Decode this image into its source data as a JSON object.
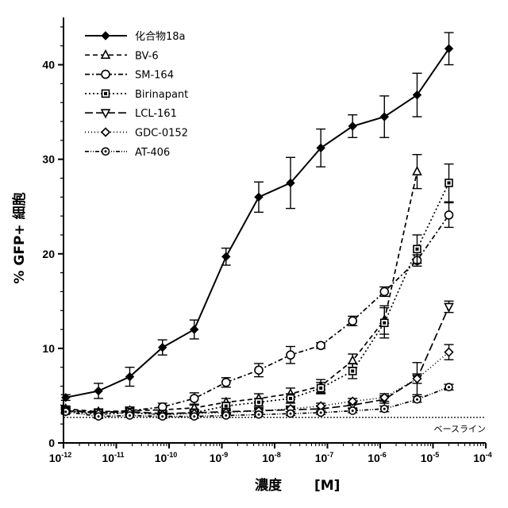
{
  "chart_data": {
    "type": "line",
    "xscale": "log",
    "xlim": [
      1e-12,
      0.0001
    ],
    "ylim": [
      0,
      45
    ],
    "xlabel": "濃度",
    "xlabel_unit": "[M]",
    "ylabel": "% GFP+ 細胞",
    "xticks": [
      "10-12",
      "10-11",
      "10-10",
      "10-9",
      "10-8",
      "10-7",
      "10-6",
      "10-5",
      "10-4"
    ],
    "yticks": [
      "0",
      "10",
      "20",
      "30",
      "40"
    ],
    "legend_position": "top-left",
    "baseline": {
      "value": 2.7,
      "label": "ベースライン"
    },
    "series": [
      {
        "name": "化合物18a",
        "marker": "diamond-filled",
        "dash": "solid",
        "x": [
          1.1e-12,
          4.6e-12,
          1.8e-11,
          7.5e-11,
          3e-10,
          1.2e-09,
          5e-09,
          2e-08,
          7.5e-08,
          3e-07,
          1.2e-06,
          5e-06,
          2e-05
        ],
        "y": [
          4.8,
          5.5,
          7.0,
          10.1,
          12.0,
          19.7,
          26.0,
          27.5,
          31.2,
          33.5,
          34.5,
          36.8,
          41.7
        ],
        "err": [
          0.3,
          0.8,
          1.0,
          0.8,
          1.0,
          0.9,
          1.6,
          2.7,
          2.0,
          1.2,
          2.2,
          2.3,
          1.7
        ]
      },
      {
        "name": "BV-6",
        "marker": "triangle-up",
        "dash": "6,4",
        "x": [
          1.1e-12,
          4.6e-12,
          1.8e-11,
          7.5e-11,
          3e-10,
          1.2e-09,
          5e-09,
          2e-08,
          7.5e-08,
          3e-07,
          1.2e-06,
          5e-06
        ],
        "y": [
          3.6,
          3.3,
          3.4,
          3.5,
          3.7,
          4.3,
          4.7,
          5.2,
          6.0,
          8.7,
          13.0,
          28.7
        ],
        "err": [
          0.3,
          0.3,
          0.3,
          0.3,
          0.3,
          0.4,
          0.5,
          0.6,
          0.7,
          0.7,
          1.5,
          1.8
        ]
      },
      {
        "name": "SM-164",
        "marker": "circle-open",
        "dash": "6,3,2,3",
        "x": [
          1.1e-12,
          4.6e-12,
          1.8e-11,
          7.5e-11,
          3e-10,
          1.2e-09,
          5e-09,
          2e-08,
          7.5e-08,
          3e-07,
          1.2e-06,
          5e-06,
          2e-05
        ],
        "y": [
          3.5,
          3.2,
          3.4,
          3.8,
          4.7,
          6.4,
          7.7,
          9.3,
          10.3,
          12.9,
          16.0,
          19.3,
          24.1
        ],
        "err": [
          0.3,
          0.3,
          0.4,
          0.4,
          0.6,
          0.5,
          0.7,
          0.9,
          0.3,
          0.5,
          0.5,
          0.6,
          1.3
        ]
      },
      {
        "name": "Birinapant",
        "marker": "square-dot",
        "dash": "2,3",
        "x": [
          1.1e-12,
          4.6e-12,
          1.8e-11,
          7.5e-11,
          3e-10,
          1.2e-09,
          5e-09,
          2e-08,
          7.5e-08,
          3e-07,
          1.2e-06,
          5e-06,
          2e-05
        ],
        "y": [
          3.4,
          3.0,
          3.2,
          3.0,
          3.2,
          3.9,
          4.3,
          4.7,
          5.8,
          7.6,
          12.7,
          20.5,
          27.5
        ],
        "err": [
          0.3,
          0.3,
          0.3,
          0.3,
          0.3,
          0.4,
          0.4,
          0.5,
          0.6,
          0.8,
          1.6,
          1.5,
          2.0
        ]
      },
      {
        "name": "LCL-161",
        "marker": "triangle-down",
        "dash": "10,4",
        "x": [
          1.1e-12,
          4.6e-12,
          1.8e-11,
          7.5e-11,
          3e-10,
          1.2e-09,
          5e-09,
          2e-08,
          7.5e-08,
          3e-07,
          1.2e-06,
          5e-06,
          2e-05
        ],
        "y": [
          3.4,
          3.2,
          3.3,
          3.1,
          3.2,
          3.3,
          3.4,
          3.5,
          3.6,
          4.0,
          4.6,
          6.8,
          14.4
        ],
        "err": [
          0.2,
          0.2,
          0.2,
          0.2,
          0.2,
          0.2,
          0.2,
          0.2,
          0.3,
          0.3,
          0.4,
          1.7,
          0.6
        ]
      },
      {
        "name": "GDC-0152",
        "marker": "diamond-open",
        "dash": "1,3",
        "x": [
          1.1e-12,
          4.6e-12,
          1.8e-11,
          7.5e-11,
          3e-10,
          1.2e-09,
          5e-09,
          2e-08,
          7.5e-08,
          3e-07,
          1.2e-06,
          5e-06,
          2e-05
        ],
        "y": [
          3.4,
          3.1,
          3.2,
          3.0,
          3.1,
          3.2,
          3.4,
          3.6,
          3.9,
          4.4,
          4.8,
          6.8,
          9.6
        ],
        "err": [
          0.2,
          0.2,
          0.2,
          0.2,
          0.2,
          0.2,
          0.2,
          0.3,
          0.3,
          0.3,
          0.4,
          0.5,
          0.8
        ]
      },
      {
        "name": "AT-406",
        "marker": "circle-dot",
        "dash": "5,2,1,2,1,2",
        "x": [
          1.1e-12,
          4.6e-12,
          1.8e-11,
          7.5e-11,
          3e-10,
          1.2e-09,
          5e-09,
          2e-08,
          7.5e-08,
          3e-07,
          1.2e-06,
          5e-06,
          2e-05
        ],
        "y": [
          3.3,
          2.8,
          2.9,
          2.8,
          2.8,
          2.9,
          3.0,
          3.1,
          3.2,
          3.4,
          3.6,
          4.6,
          5.9
        ],
        "err": [
          0.2,
          0.2,
          0.2,
          0.2,
          0.2,
          0.2,
          0.2,
          0.2,
          0.2,
          0.2,
          0.3,
          0.3,
          0.3
        ]
      }
    ]
  }
}
